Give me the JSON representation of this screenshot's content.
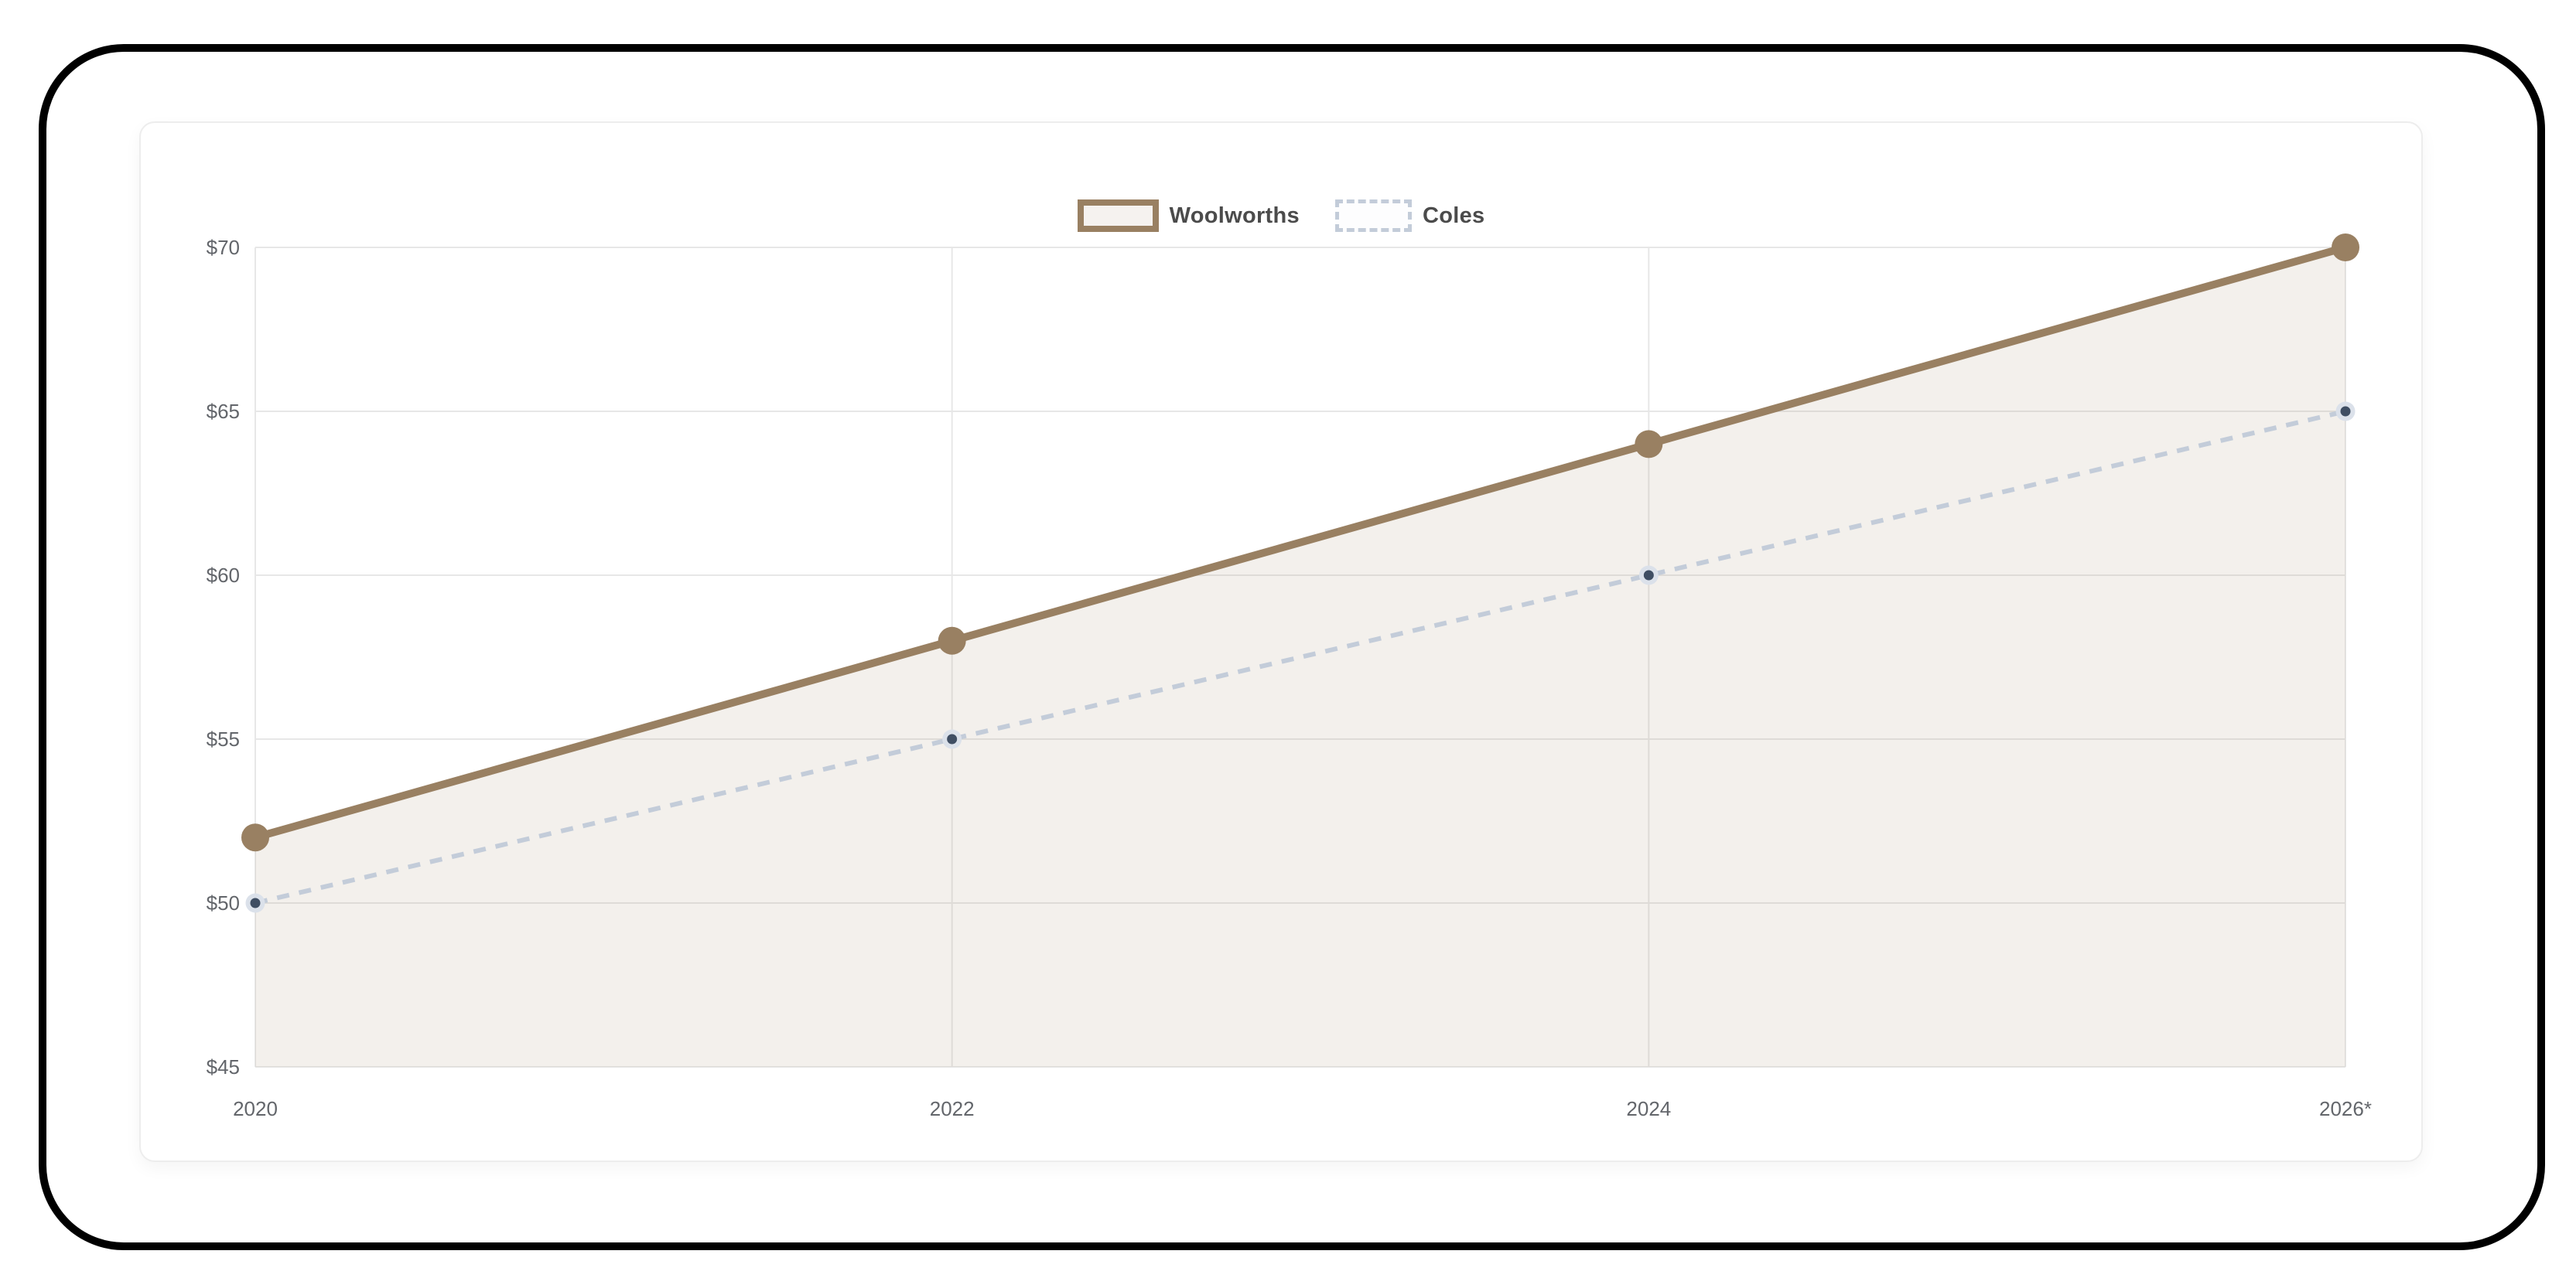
{
  "card": {
    "background": "#ffffff",
    "border_color": "#ededed"
  },
  "frame": {
    "color": "#000000"
  },
  "legend": {
    "position": "top-center",
    "items": [
      {
        "label": "Woolworths",
        "swatch_style": "solid-brown-box"
      },
      {
        "label": "Coles",
        "swatch_style": "dashed-gray-box"
      }
    ]
  },
  "chart_data": {
    "type": "line",
    "categories": [
      "2020",
      "2022",
      "2024",
      "2026*"
    ],
    "series": [
      {
        "name": "Woolworths",
        "values": [
          52,
          58,
          64,
          70
        ],
        "line_style": "solid",
        "color": "#998062",
        "point_style": "filled-circle",
        "has_area_fill": true
      },
      {
        "name": "Coles",
        "values": [
          50,
          55,
          60,
          65
        ],
        "line_style": "dashed",
        "color": "#c3ccd9",
        "point_style": "ring-with-dark-center",
        "point_ring_color": "#dbe1ea",
        "point_center_color": "#3f4e63",
        "has_area_fill": false
      }
    ],
    "ylim": [
      45,
      70
    ],
    "y_ticks": [
      {
        "value": 45,
        "label": "$45"
      },
      {
        "value": 50,
        "label": "$50"
      },
      {
        "value": 55,
        "label": "$55"
      },
      {
        "value": 60,
        "label": "$60"
      },
      {
        "value": 65,
        "label": "$65"
      },
      {
        "value": 70,
        "label": "$70"
      }
    ],
    "grid": true,
    "legend_position": "top-center",
    "colors": {
      "gridline": "#e7e7e7",
      "axis_label": "#63666b",
      "area_fill_base": "#998062",
      "area_fill_opacity": 0.12
    }
  }
}
